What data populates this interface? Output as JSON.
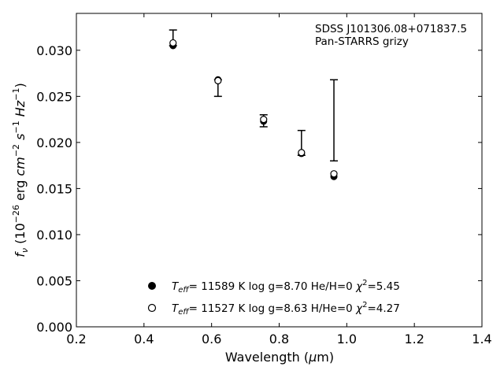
{
  "chart_data": {
    "type": "scatter",
    "title": "",
    "annotations": [
      "SDSS J101306.08+071837.5",
      "Pan-STARRS grizy"
    ],
    "xlabel": "Wavelength",
    "xlabel_unit": "μm",
    "ylabel": "erg cm s Hz",
    "xlim": [
      0.2,
      1.4
    ],
    "ylim": [
      0.0,
      0.034
    ],
    "xticks": [
      "0.2",
      "0.4",
      "0.6",
      "0.8",
      "1.0",
      "1.2",
      "1.4"
    ],
    "yticks": [
      "0.000",
      "0.005",
      "0.010",
      "0.015",
      "0.020",
      "0.025",
      "0.030"
    ],
    "grid": false,
    "legend_placement": "bottom-center",
    "observed": {
      "x": [
        0.486,
        0.619,
        0.754,
        0.866,
        0.962
      ],
      "y": [
        0.0307,
        0.0265,
        0.0224,
        0.0188,
        0.0224
      ],
      "yerr_low": [
        0.0305,
        0.025,
        0.0217,
        0.0186,
        0.018
      ],
      "yerr_high": [
        0.0322,
        0.0268,
        0.023,
        0.0213,
        0.0268
      ]
    },
    "series": [
      {
        "name": "Teff= 11589 K  log g=8.70  He/H=0  χ2=5.45",
        "marker": "filled-circle",
        "x": [
          0.486,
          0.619,
          0.754,
          0.866,
          0.962
        ],
        "y": [
          0.0305,
          0.0268,
          0.0223,
          0.0188,
          0.0163
        ]
      },
      {
        "name": "Teff= 11527 K  log g=8.63  H/He=0  χ2=4.27",
        "marker": "open-circle",
        "x": [
          0.486,
          0.619,
          0.754,
          0.866,
          0.962
        ],
        "y": [
          0.0308,
          0.0267,
          0.0225,
          0.0189,
          0.0166
        ]
      }
    ]
  }
}
